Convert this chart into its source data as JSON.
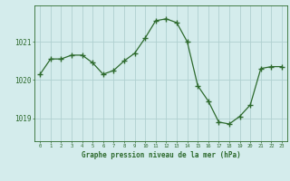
{
  "x": [
    0,
    1,
    2,
    3,
    4,
    5,
    6,
    7,
    8,
    9,
    10,
    11,
    12,
    13,
    14,
    15,
    16,
    17,
    18,
    19,
    20,
    21,
    22,
    23
  ],
  "y": [
    1020.15,
    1020.55,
    1020.55,
    1020.65,
    1020.65,
    1020.45,
    1020.15,
    1020.25,
    1020.5,
    1020.7,
    1021.1,
    1021.55,
    1021.6,
    1021.5,
    1021.0,
    1019.85,
    1019.45,
    1018.9,
    1018.85,
    1019.05,
    1019.35,
    1020.3,
    1020.35,
    1020.35
  ],
  "line_color": "#2d6a2d",
  "marker_color": "#2d6a2d",
  "bg_color": "#d4ecec",
  "grid_color": "#b0d0d0",
  "axis_label_color": "#2d6a2d",
  "tick_color": "#2d6a2d",
  "xlabel": "Graphe pression niveau de la mer (hPa)",
  "yticks": [
    1019,
    1020,
    1021
  ],
  "ylim": [
    1018.4,
    1021.95
  ],
  "xlim": [
    -0.5,
    23.5
  ]
}
